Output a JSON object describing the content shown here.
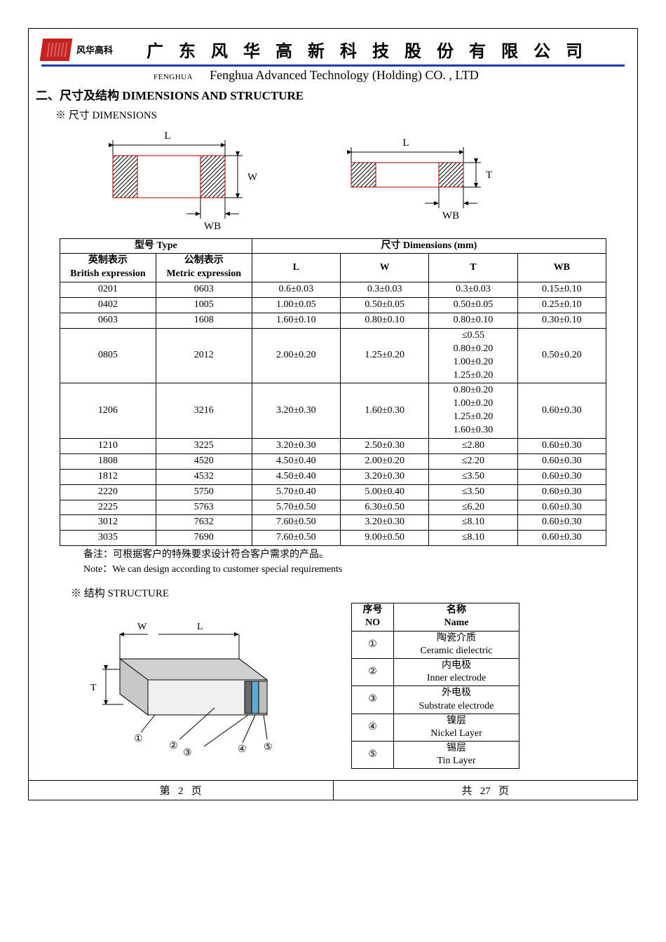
{
  "header": {
    "brand_cn": "风华高科",
    "title_cn": "广 东 风 华 高 新 科 技 股 份 有 限 公 司",
    "fenghua_en": "FENGHUA",
    "title_en": "Fenghua Advanced Technology (Holding) CO. , LTD",
    "colors": {
      "rule": "#1c3fb5",
      "logo": "#c62020"
    }
  },
  "section": {
    "heading": "二、尺寸及结构   DIMENSIONS AND STRUCTURE",
    "sub_dimensions": "※ 尺寸 DIMENSIONS",
    "sub_structure": "※ 结构 STRUCTURE"
  },
  "diagram_labels": {
    "L": "L",
    "W": "W",
    "T": "T",
    "WB": "WB"
  },
  "dims_table": {
    "header_type": "型号 Type",
    "header_dims": "尺寸     Dimensions     (mm)",
    "col_british_cn": "英制表示",
    "col_british_en": "British expression",
    "col_metric_cn": "公制表示",
    "col_metric_en": "Metric expression",
    "col_L": "L",
    "col_W": "W",
    "col_T": "T",
    "col_WB": "WB",
    "rows": [
      {
        "br": "0201",
        "me": "0603",
        "L": "0.6±0.03",
        "W": "0.3±0.03",
        "T": "0.3±0.03",
        "WB": "0.15±0.10"
      },
      {
        "br": "0402",
        "me": "1005",
        "L": "1.00±0.05",
        "W": "0.50±0.05",
        "T": "0.50±0.05",
        "WB": "0.25±0.10"
      },
      {
        "br": "0603",
        "me": "1608",
        "L": "1.60±0.10",
        "W": "0.80±0.10",
        "T": "0.80±0.10",
        "WB": "0.30±0.10"
      },
      {
        "br": "0805",
        "me": "2012",
        "L": "2.00±0.20",
        "W": "1.25±0.20",
        "T": "≤0.55\n0.80±0.20\n1.00±0.20\n1.25±0.20",
        "WB": "0.50±0.20"
      },
      {
        "br": "1206",
        "me": "3216",
        "L": "3.20±0.30",
        "W": "1.60±0.30",
        "T": "0.80±0.20\n1.00±0.20\n1.25±0.20\n1.60±0.30",
        "WB": "0.60±0.30"
      },
      {
        "br": "1210",
        "me": "3225",
        "L": "3.20±0.30",
        "W": "2.50±0.30",
        "T": "≤2.80",
        "WB": "0.60±0.30"
      },
      {
        "br": "1808",
        "me": "4520",
        "L": "4.50±0.40",
        "W": "2.00±0.20",
        "T": "≤2.20",
        "WB": "0.60±0.30"
      },
      {
        "br": "1812",
        "me": "4532",
        "L": "4.50±0.40",
        "W": "3.20±0.30",
        "T": "≤3.50",
        "WB": "0.60±0.30"
      },
      {
        "br": "2220",
        "me": "5750",
        "L": "5.70±0.40",
        "W": "5.00±0.40",
        "T": "≤3.50",
        "WB": "0.60±0.30"
      },
      {
        "br": "2225",
        "me": "5763",
        "L": "5.70±0.50",
        "W": "6.30±0.50",
        "T": "≤6.20",
        "WB": "0.60±0.30"
      },
      {
        "br": "3012",
        "me": "7632",
        "L": "7.60±0.50",
        "W": "3.20±0.30",
        "T": "≤8.10",
        "WB": "0.60±0.30"
      },
      {
        "br": "3035",
        "me": "7690",
        "L": "7.60±0.50",
        "W": "9.00±0.50",
        "T": "≤8.10",
        "WB": "0.60±0.30"
      }
    ]
  },
  "notes": {
    "cn": "备注：可根据客户的特殊要求设计符合客户需求的产品。",
    "en": "Note：We can design according to customer special requirements"
  },
  "struct_table": {
    "col_no_cn": "序号",
    "col_no_en": "NO",
    "col_name_cn": "名称",
    "col_name_en": "Name",
    "rows": [
      {
        "no": "①",
        "cn": "陶瓷介质",
        "en": "Ceramic   dielectric"
      },
      {
        "no": "②",
        "cn": "内电极",
        "en": "Inner   electrode"
      },
      {
        "no": "③",
        "cn": "外电极",
        "en": "Substrate   electrode"
      },
      {
        "no": "④",
        "cn": "镍层",
        "en": "Nickel Layer"
      },
      {
        "no": "⑤",
        "cn": "锡层",
        "en": "Tin Layer"
      }
    ]
  },
  "struct_diagram": {
    "W": "W",
    "L": "L",
    "T": "T",
    "n1": "①",
    "n2": "②",
    "n3": "③",
    "n4": "④",
    "n5": "⑤"
  },
  "footer": {
    "left_pre": "第",
    "left_num": "2",
    "left_post": "页",
    "right_pre": "共",
    "right_num": "27",
    "right_post": "页"
  }
}
